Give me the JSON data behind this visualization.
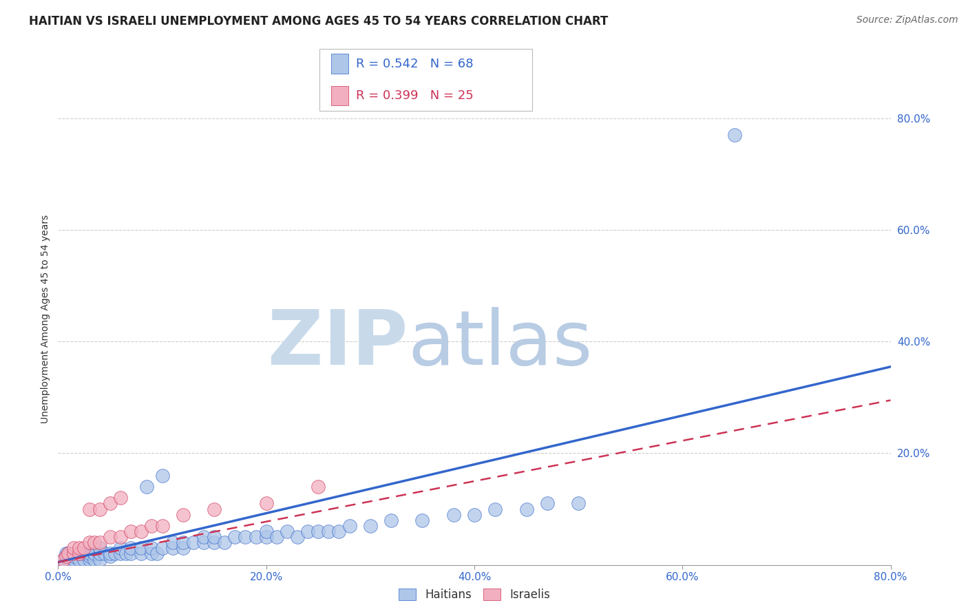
{
  "title": "HAITIAN VS ISRAELI UNEMPLOYMENT AMONG AGES 45 TO 54 YEARS CORRELATION CHART",
  "source": "Source: ZipAtlas.com",
  "ylabel": "Unemployment Among Ages 45 to 54 years",
  "xlim": [
    0.0,
    0.8
  ],
  "ylim": [
    0.0,
    0.88
  ],
  "ytick_values": [
    0.2,
    0.4,
    0.6,
    0.8
  ],
  "xtick_values": [
    0.0,
    0.2,
    0.4,
    0.6,
    0.8
  ],
  "haitian_color": "#aec6e8",
  "israeli_color": "#f2afc0",
  "haitian_line_color": "#3366cc",
  "israeli_line_color": "#cc3355",
  "haitian_R": 0.542,
  "haitian_N": 68,
  "israeli_R": 0.399,
  "israeli_N": 25,
  "watermark_zip": "ZIP",
  "watermark_atlas": "atlas",
  "watermark_color": "#dce8f0",
  "legend_label_haitian": "Haitians",
  "legend_label_israeli": "Israelis",
  "haitian_scatter": [
    [
      0.005,
      0.01
    ],
    [
      0.008,
      0.02
    ],
    [
      0.01,
      0.01
    ],
    [
      0.01,
      0.02
    ],
    [
      0.015,
      0.01
    ],
    [
      0.015,
      0.015
    ],
    [
      0.02,
      0.01
    ],
    [
      0.02,
      0.02
    ],
    [
      0.025,
      0.01
    ],
    [
      0.025,
      0.02
    ],
    [
      0.03,
      0.01
    ],
    [
      0.03,
      0.015
    ],
    [
      0.03,
      0.02
    ],
    [
      0.035,
      0.01
    ],
    [
      0.035,
      0.02
    ],
    [
      0.04,
      0.01
    ],
    [
      0.04,
      0.02
    ],
    [
      0.04,
      0.03
    ],
    [
      0.045,
      0.02
    ],
    [
      0.05,
      0.015
    ],
    [
      0.05,
      0.02
    ],
    [
      0.055,
      0.02
    ],
    [
      0.06,
      0.02
    ],
    [
      0.06,
      0.03
    ],
    [
      0.065,
      0.02
    ],
    [
      0.07,
      0.02
    ],
    [
      0.07,
      0.03
    ],
    [
      0.08,
      0.02
    ],
    [
      0.08,
      0.03
    ],
    [
      0.085,
      0.14
    ],
    [
      0.09,
      0.02
    ],
    [
      0.09,
      0.03
    ],
    [
      0.095,
      0.02
    ],
    [
      0.1,
      0.03
    ],
    [
      0.1,
      0.16
    ],
    [
      0.11,
      0.03
    ],
    [
      0.11,
      0.04
    ],
    [
      0.12,
      0.03
    ],
    [
      0.12,
      0.04
    ],
    [
      0.13,
      0.04
    ],
    [
      0.14,
      0.04
    ],
    [
      0.14,
      0.05
    ],
    [
      0.15,
      0.04
    ],
    [
      0.15,
      0.05
    ],
    [
      0.16,
      0.04
    ],
    [
      0.17,
      0.05
    ],
    [
      0.18,
      0.05
    ],
    [
      0.19,
      0.05
    ],
    [
      0.2,
      0.05
    ],
    [
      0.2,
      0.06
    ],
    [
      0.21,
      0.05
    ],
    [
      0.22,
      0.06
    ],
    [
      0.23,
      0.05
    ],
    [
      0.24,
      0.06
    ],
    [
      0.25,
      0.06
    ],
    [
      0.26,
      0.06
    ],
    [
      0.27,
      0.06
    ],
    [
      0.28,
      0.07
    ],
    [
      0.3,
      0.07
    ],
    [
      0.32,
      0.08
    ],
    [
      0.35,
      0.08
    ],
    [
      0.38,
      0.09
    ],
    [
      0.4,
      0.09
    ],
    [
      0.42,
      0.1
    ],
    [
      0.45,
      0.1
    ],
    [
      0.47,
      0.11
    ],
    [
      0.5,
      0.11
    ],
    [
      0.65,
      0.77
    ]
  ],
  "israeli_scatter": [
    [
      0.005,
      0.01
    ],
    [
      0.008,
      0.015
    ],
    [
      0.01,
      0.02
    ],
    [
      0.015,
      0.02
    ],
    [
      0.015,
      0.03
    ],
    [
      0.02,
      0.02
    ],
    [
      0.02,
      0.03
    ],
    [
      0.025,
      0.03
    ],
    [
      0.03,
      0.04
    ],
    [
      0.03,
      0.1
    ],
    [
      0.035,
      0.04
    ],
    [
      0.04,
      0.04
    ],
    [
      0.04,
      0.1
    ],
    [
      0.05,
      0.05
    ],
    [
      0.05,
      0.11
    ],
    [
      0.06,
      0.05
    ],
    [
      0.06,
      0.12
    ],
    [
      0.07,
      0.06
    ],
    [
      0.08,
      0.06
    ],
    [
      0.09,
      0.07
    ],
    [
      0.1,
      0.07
    ],
    [
      0.12,
      0.09
    ],
    [
      0.15,
      0.1
    ],
    [
      0.2,
      0.11
    ],
    [
      0.25,
      0.14
    ]
  ],
  "haitian_line_x": [
    0.0,
    0.8
  ],
  "haitian_line_y": [
    0.005,
    0.355
  ],
  "israeli_line_x": [
    0.0,
    0.8
  ],
  "israeli_line_y": [
    0.005,
    0.295
  ]
}
